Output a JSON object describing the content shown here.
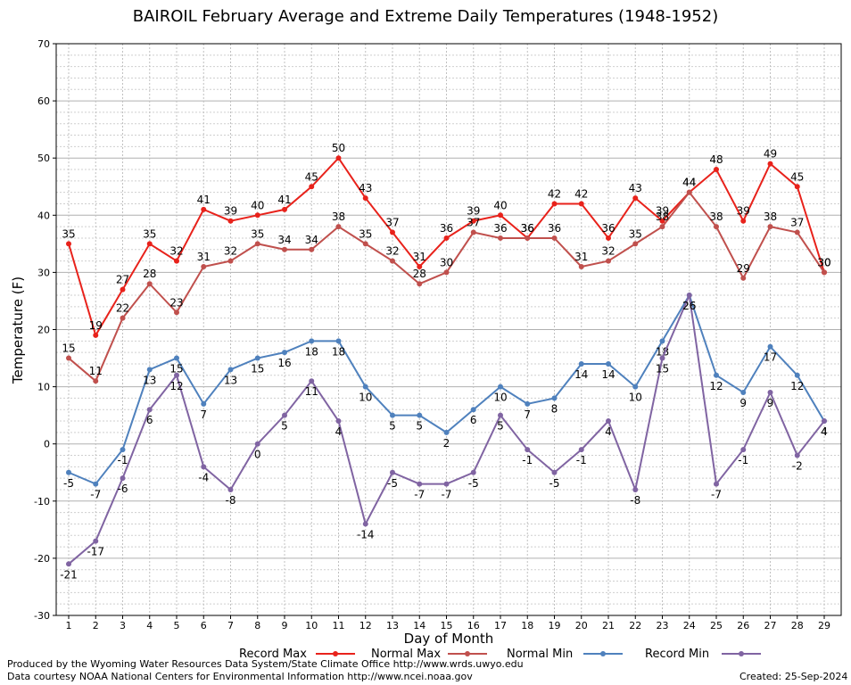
{
  "chart_data": {
    "type": "line",
    "title": "BAIROIL February Average and Extreme Daily Temperatures (1948-1952)",
    "xlabel": "Day of Month",
    "ylabel": "Temperature (F)",
    "ylim": [
      -30,
      70
    ],
    "yticks": [
      -30,
      -20,
      -10,
      0,
      10,
      20,
      30,
      40,
      50,
      60,
      70
    ],
    "x": [
      1,
      2,
      3,
      4,
      5,
      6,
      7,
      8,
      9,
      10,
      11,
      12,
      13,
      14,
      15,
      16,
      17,
      18,
      19,
      20,
      21,
      22,
      23,
      24,
      25,
      26,
      27,
      28,
      29
    ],
    "grid": true,
    "legend_position": "bottom",
    "series": [
      {
        "name": "Record Max",
        "color": "#e8221b",
        "values": [
          35,
          19,
          27,
          35,
          32,
          41,
          39,
          40,
          41,
          45,
          50,
          43,
          37,
          31,
          36,
          39,
          40,
          36,
          42,
          42,
          36,
          43,
          39,
          44,
          48,
          39,
          49,
          45,
          30
        ]
      },
      {
        "name": "Normal Max",
        "color": "#c0504d",
        "values": [
          15,
          11,
          22,
          28,
          23,
          31,
          32,
          35,
          34,
          34,
          38,
          35,
          32,
          28,
          30,
          37,
          36,
          36,
          36,
          31,
          32,
          35,
          38,
          44,
          38,
          29,
          38,
          37,
          30
        ]
      },
      {
        "name": "Normal Min",
        "color": "#4f81bd",
        "values": [
          -5,
          -7,
          -1,
          13,
          15,
          7,
          13,
          15,
          16,
          18,
          18,
          10,
          5,
          5,
          2,
          6,
          10,
          7,
          8,
          14,
          14,
          10,
          18,
          26,
          12,
          9,
          17,
          12,
          4
        ]
      },
      {
        "name": "Record Min",
        "color": "#8064a2",
        "values": [
          -21,
          -17,
          -6,
          6,
          12,
          -4,
          -8,
          0,
          5,
          11,
          4,
          -14,
          -5,
          -7,
          -7,
          -5,
          5,
          -1,
          -5,
          -1,
          4,
          -8,
          15,
          26,
          -7,
          -1,
          9,
          -2,
          4
        ]
      }
    ]
  },
  "footer": {
    "produced_by": "Produced by the Wyoming Water Resources Data System/State Climate Office http://www.wrds.uwyo.edu",
    "courtesy": "Data courtesy NOAA National Centers for Environmental Information http://www.ncei.noaa.gov",
    "created": "Created:  25-Sep-2024"
  }
}
